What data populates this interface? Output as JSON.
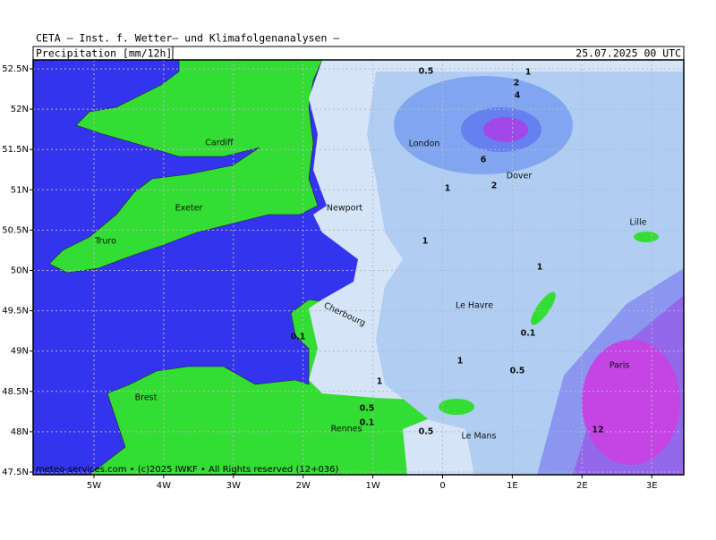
{
  "header": {
    "title": "CETA – Inst. f. Wetter– und Klimafolgenanalysen –",
    "parameter": "Precipitation [mm/12h]",
    "valid_time": "25.07.2025 00 UTC"
  },
  "map": {
    "lat_labels": [
      "52.5N",
      "52N",
      "51.5N",
      "51N",
      "50.5N",
      "50N",
      "49.5N",
      "49N",
      "48.5N",
      "48N",
      "47.5N"
    ],
    "lon_labels": [
      "5W",
      "4W",
      "3W",
      "2W",
      "1W",
      "0",
      "1E",
      "2E",
      "3E"
    ],
    "cities": [
      "Cardiff",
      "London",
      "Dover",
      "Exeter",
      "Newport",
      "Truro",
      "Lille",
      "Le Havre",
      "Cherbourg",
      "Paris",
      "Brest",
      "Rennes",
      "Le Mans"
    ],
    "contour_labels": [
      0.5,
      1,
      2,
      4,
      6,
      1,
      2,
      1,
      1,
      0.1,
      1,
      0.5,
      1,
      0.5,
      0.1,
      0.5,
      12,
      0.1
    ],
    "footer": "meteo-services.com • (c)2025 IWKF • All Rights reserved (12+036)"
  }
}
